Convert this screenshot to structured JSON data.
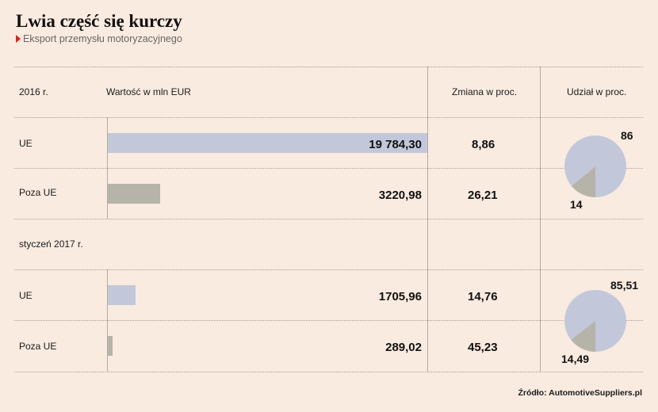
{
  "header": {
    "title": "Lwia część się kurczy",
    "subtitle": "Eksport przemysłu motoryzacyjnego"
  },
  "columns": {
    "value": "Wartość w mln EUR",
    "change": "Zmiana w proc.",
    "share": "Udział w proc."
  },
  "source": "Źródło: AutomotiveSuppliers.pl",
  "colors": {
    "ue": "#c2c8da",
    "poza_ue": "#b6b3a9",
    "title_marker": "#e0201b"
  },
  "chart_data": [
    {
      "type": "table",
      "period": "2016 r.",
      "rows": [
        {
          "label": "UE",
          "value": 19784.3,
          "value_text": "19 784,30",
          "change": "8,86"
        },
        {
          "label": "Poza UE",
          "value": 3220.98,
          "value_text": "3220,98",
          "change": "26,21"
        }
      ],
      "pie": {
        "type": "pie",
        "slices": [
          {
            "label": "UE",
            "value": 86,
            "text": "86"
          },
          {
            "label": "Poza UE",
            "value": 14,
            "text": "14"
          }
        ]
      }
    },
    {
      "type": "table",
      "period": "styczeń 2017 r.",
      "rows": [
        {
          "label": "UE",
          "value": 1705.96,
          "value_text": "1705,96",
          "change": "14,76"
        },
        {
          "label": "Poza UE",
          "value": 289.02,
          "value_text": "289,02",
          "change": "45,23"
        }
      ],
      "pie": {
        "type": "pie",
        "slices": [
          {
            "label": "UE",
            "value": 85.51,
            "text": "85,51"
          },
          {
            "label": "Poza UE",
            "value": 14.49,
            "text": "14,49"
          }
        ]
      }
    }
  ]
}
